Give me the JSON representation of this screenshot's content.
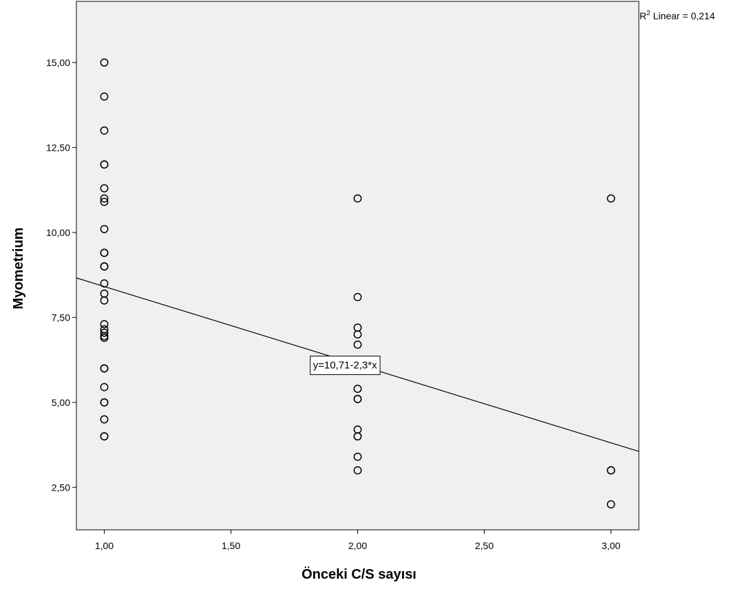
{
  "chart_data": {
    "type": "scatter",
    "title": "",
    "xlabel": "Önceki C/S sayısı",
    "ylabel": "Myometrium",
    "xlim": [
      0.89,
      3.11
    ],
    "ylim": [
      1.25,
      16.8
    ],
    "x_ticks": [
      1.0,
      1.5,
      2.0,
      2.5,
      3.0
    ],
    "x_tick_labels": [
      "1,00",
      "1,50",
      "2,00",
      "2,50",
      "3,00"
    ],
    "y_ticks": [
      2.5,
      5.0,
      7.5,
      10.0,
      12.5,
      15.0
    ],
    "y_tick_labels": [
      "2,50",
      "5,00",
      "7,50",
      "10,00",
      "12,50",
      "15,00"
    ],
    "grid": false,
    "background": "#f0f0f0",
    "marker_color": "#000000",
    "points": [
      {
        "x": 1,
        "y": 15.0
      },
      {
        "x": 1,
        "y": 14.0
      },
      {
        "x": 1,
        "y": 13.0
      },
      {
        "x": 1,
        "y": 12.0
      },
      {
        "x": 1,
        "y": 12.0
      },
      {
        "x": 1,
        "y": 11.3
      },
      {
        "x": 1,
        "y": 11.0
      },
      {
        "x": 1,
        "y": 10.9
      },
      {
        "x": 1,
        "y": 10.1
      },
      {
        "x": 1,
        "y": 9.4
      },
      {
        "x": 1,
        "y": 9.4
      },
      {
        "x": 1,
        "y": 9.0
      },
      {
        "x": 1,
        "y": 9.0
      },
      {
        "x": 1,
        "y": 8.5
      },
      {
        "x": 1,
        "y": 8.2
      },
      {
        "x": 1,
        "y": 8.0
      },
      {
        "x": 1,
        "y": 7.3
      },
      {
        "x": 1,
        "y": 7.15
      },
      {
        "x": 1,
        "y": 7.05
      },
      {
        "x": 1,
        "y": 6.95
      },
      {
        "x": 1,
        "y": 6.9
      },
      {
        "x": 1,
        "y": 6.0
      },
      {
        "x": 1,
        "y": 6.0
      },
      {
        "x": 1,
        "y": 5.45
      },
      {
        "x": 1,
        "y": 5.0
      },
      {
        "x": 1,
        "y": 5.0
      },
      {
        "x": 1,
        "y": 4.5
      },
      {
        "x": 1,
        "y": 4.0
      },
      {
        "x": 1,
        "y": 4.0
      },
      {
        "x": 2,
        "y": 11.0
      },
      {
        "x": 2,
        "y": 8.1
      },
      {
        "x": 2,
        "y": 7.2
      },
      {
        "x": 2,
        "y": 7.0
      },
      {
        "x": 2,
        "y": 6.7
      },
      {
        "x": 2,
        "y": 5.4
      },
      {
        "x": 2,
        "y": 5.1
      },
      {
        "x": 2,
        "y": 5.1
      },
      {
        "x": 2,
        "y": 4.2
      },
      {
        "x": 2,
        "y": 4.0
      },
      {
        "x": 2,
        "y": 4.0
      },
      {
        "x": 2,
        "y": 3.4
      },
      {
        "x": 2,
        "y": 3.0
      },
      {
        "x": 3,
        "y": 11.0
      },
      {
        "x": 3,
        "y": 3.0
      },
      {
        "x": 3,
        "y": 3.0
      },
      {
        "x": 3,
        "y": 2.0
      }
    ],
    "fit_line": {
      "intercept": 10.71,
      "slope": -2.3
    },
    "equation_label": "y=10,71-2,3*x",
    "equation_anchor": {
      "x": 1.95,
      "y": 6.1
    },
    "r2_label": {
      "prefix": "R",
      "sup": "2",
      "text": " Linear = 0,214"
    }
  }
}
